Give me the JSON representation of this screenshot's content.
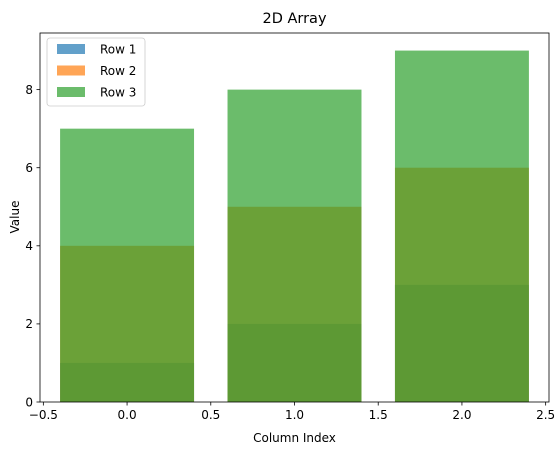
{
  "chart_data": {
    "type": "bar",
    "title": "2D Array",
    "xlabel": "Column Index",
    "ylabel": "Value",
    "x": [
      0,
      1,
      2
    ],
    "bar_width": 0.8,
    "xlim": [
      -0.52,
      2.52
    ],
    "ylim": [
      0,
      9.45
    ],
    "xticks": [
      -0.5,
      0.0,
      0.5,
      1.0,
      1.5,
      2.0,
      2.5
    ],
    "xtick_labels": [
      "−0.5",
      "0.0",
      "0.5",
      "1.0",
      "1.5",
      "2.0",
      "2.5"
    ],
    "yticks": [
      0,
      2,
      4,
      6,
      8
    ],
    "ytick_labels": [
      "0",
      "2",
      "4",
      "6",
      "8"
    ],
    "series": [
      {
        "name": "Row 1",
        "values": [
          1,
          2,
          3
        ],
        "color": "#1f77b4",
        "opacity": 0.7
      },
      {
        "name": "Row 2",
        "values": [
          4,
          5,
          6
        ],
        "color": "#ff7f0e",
        "opacity": 0.7
      },
      {
        "name": "Row 3",
        "values": [
          7,
          8,
          9
        ],
        "color": "#2ca02c",
        "opacity": 0.7
      }
    ],
    "legend_position": "top-left",
    "grid": false
  }
}
